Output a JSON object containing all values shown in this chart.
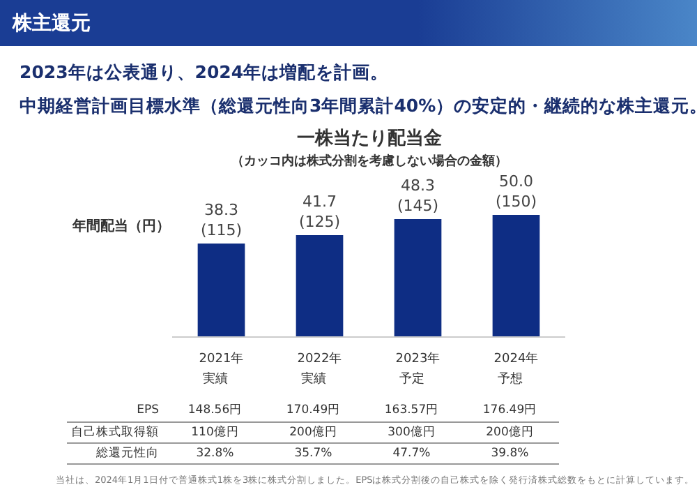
{
  "chart_data": {
    "type": "bar",
    "title": "一株当たり配当金",
    "subtitle": "（カッコ内は株式分割を考慮しない場合の金額）",
    "ylabel": "年間配当（円）",
    "categories": [
      "2021年",
      "2022年",
      "2023年",
      "2024年"
    ],
    "values": [
      38.3,
      41.7,
      48.3,
      50.0
    ],
    "value_labels": [
      "38.3\n(115)",
      "41.7\n(125)",
      "48.3\n(145)",
      "50.0\n(150)"
    ],
    "color": "#0e2d84",
    "annotations": [
      "株主還元",
      "2023年は公表通り、2024年は増配を計画。",
      "中期経営計画目標水準（総還元性向3年間累計40%）の安定的・継続的な株主還元。",
      "実績",
      "実績",
      "予定",
      "予想",
      "EPS",
      "148.56円",
      "170.49円",
      "163.57円",
      "176.49円",
      "自己株式取得額",
      "110億円",
      "200億円",
      "300億円",
      "200億円",
      "総還元性向",
      "32.8%",
      "35.7%",
      "47.7%",
      "39.8%",
      "当社は、2024年1月1日付で普通株式1株を3株に株式分割しました。EPSは株式分割後の自己株式を除く発行済株式総数をもとに計算しています。"
    ]
  }
}
